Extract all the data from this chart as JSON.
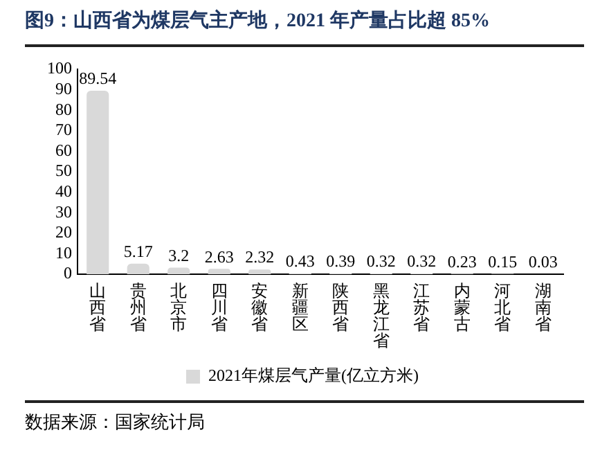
{
  "chart_data": {
    "type": "bar",
    "title": "图9：山西省为煤层气主产地，2021 年产量占比超 85%",
    "categories": [
      "山西省",
      "贵州省",
      "北京市",
      "四川省",
      "安徽省",
      "新疆区",
      "陕西省",
      "黑龙江省",
      "江苏省",
      "内蒙古",
      "河北省",
      "湖南省"
    ],
    "series": [
      {
        "name": "2021年煤层气产量(亿立方米)",
        "color": "#d9d9d9",
        "values": [
          89.54,
          5.17,
          3.2,
          2.63,
          2.32,
          0.43,
          0.39,
          0.32,
          0.32,
          0.23,
          0.15,
          0.03
        ]
      }
    ],
    "ylim": [
      0,
      100
    ],
    "yticks": [
      0,
      10,
      20,
      30,
      40,
      50,
      60,
      70,
      80,
      90,
      100
    ],
    "grid": false,
    "legend": "bottom",
    "data_labels": true,
    "annotations": [
      "数据来源：国家统计局"
    ]
  }
}
